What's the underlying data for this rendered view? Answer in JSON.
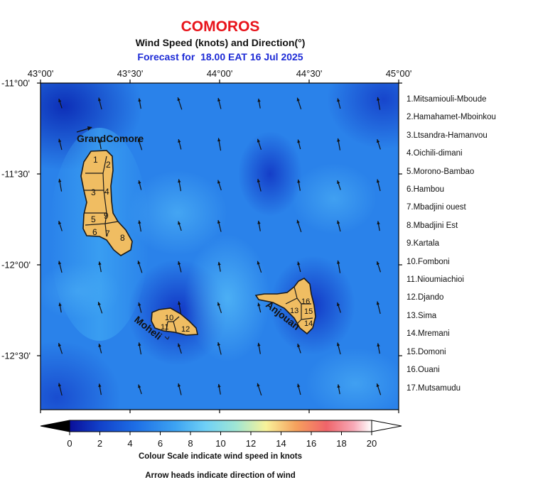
{
  "header": {
    "title": "COMOROS",
    "subtitle": "Wind Speed (knots) and Direction(°)",
    "forecast_prefix": "Forecast for",
    "forecast_time": "18.00 EAT 16 Jul 2025"
  },
  "axes": {
    "lon_labels": [
      "43°00'",
      "43°30'",
      "44°00'",
      "44°30'",
      "45°00'"
    ],
    "lat_labels": [
      "-11°00'",
      "-11°30'",
      "-12°00'",
      "-12°30'"
    ]
  },
  "islands": {
    "grand_comore": "GrandComore",
    "moheli": "Moheli",
    "anjouan": "Anjouan"
  },
  "region_numbers": {
    "grand_comore": [
      "1",
      "2",
      "3",
      "4",
      "5",
      "9",
      "6",
      "7",
      "8"
    ],
    "moheli": [
      "10",
      "11",
      "12"
    ],
    "anjouan": [
      "16",
      "13",
      "15",
      "14"
    ]
  },
  "legend": [
    "1.Mitsamiouli-Mboude",
    "2.Hamahamet-Mboinkou",
    "3.Ltsandra-Hamanvou",
    "4.Oichili-dimani",
    "5.Morono-Bambao",
    "6.Hambou",
    "7.Mbadjini ouest",
    "8.Mbadjini Est",
    "9.Kartala",
    "10.Fomboni",
    "11.Nioumiachioi",
    "12.Djando",
    "13.Sima",
    "14.Mremani",
    "15.Domoni",
    "16.Ouani",
    "17.Mutsamudu"
  ],
  "colorbar": {
    "ticks": [
      "0",
      "2",
      "4",
      "6",
      "8",
      "10",
      "12",
      "14",
      "16",
      "18",
      "20"
    ],
    "title": "Colour Scale indicate wind speed in knots",
    "note": "Arrow heads indicate direction of wind",
    "min": 0,
    "max": 20,
    "colors": [
      "#000000",
      "#0a0f9a",
      "#1241c9",
      "#1e6fe6",
      "#3da3f2",
      "#6fd0f6",
      "#9fe6d4",
      "#f8f29a",
      "#f6a15d",
      "#f0646a",
      "#f7a9b7",
      "#ffffff"
    ]
  }
}
